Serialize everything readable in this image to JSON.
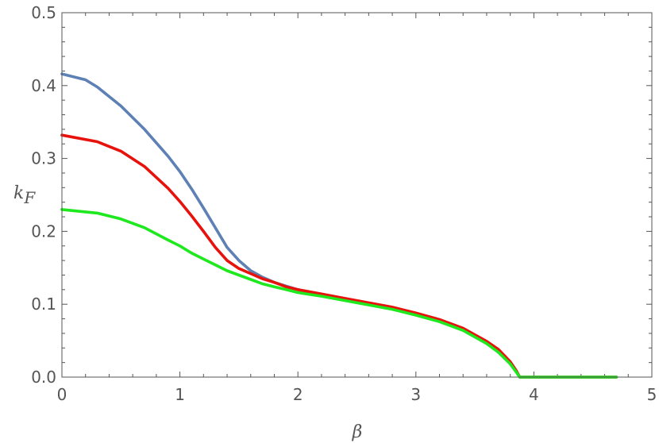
{
  "chart_data": {
    "type": "line",
    "xlabel": "β",
    "ylabel_main": "k",
    "ylabel_sub": "F",
    "xlim": [
      0,
      5
    ],
    "ylim": [
      0,
      0.5
    ],
    "grid": false,
    "xticks": [
      0,
      1,
      2,
      3,
      4,
      5
    ],
    "xtick_labels": [
      "0",
      "1",
      "2",
      "3",
      "4",
      "5"
    ],
    "yticks": [
      0,
      0.1,
      0.2,
      0.3,
      0.4,
      0.5
    ],
    "ytick_labels": [
      "0.0",
      "0.1",
      "0.2",
      "0.3",
      "0.4",
      "0.5"
    ],
    "series": [
      {
        "color": "#5e81b5",
        "points": [
          [
            0,
            0.416
          ],
          [
            0.2,
            0.408
          ],
          [
            0.3,
            0.398
          ],
          [
            0.5,
            0.372
          ],
          [
            0.7,
            0.34
          ],
          [
            0.9,
            0.303
          ],
          [
            1.0,
            0.282
          ],
          [
            1.1,
            0.258
          ],
          [
            1.2,
            0.232
          ],
          [
            1.3,
            0.205
          ],
          [
            1.4,
            0.178
          ],
          [
            1.5,
            0.16
          ],
          [
            1.6,
            0.146
          ],
          [
            1.7,
            0.137
          ],
          [
            1.8,
            0.13
          ],
          [
            1.9,
            0.125
          ],
          [
            2.0,
            0.12
          ],
          [
            2.2,
            0.113
          ],
          [
            2.4,
            0.107
          ],
          [
            2.6,
            0.101
          ],
          [
            2.8,
            0.095
          ],
          [
            3.0,
            0.087
          ],
          [
            3.2,
            0.078
          ],
          [
            3.4,
            0.066
          ],
          [
            3.6,
            0.048
          ],
          [
            3.7,
            0.037
          ],
          [
            3.8,
            0.02
          ],
          [
            3.85,
            0.008
          ],
          [
            3.88,
            0.0
          ],
          [
            4.0,
            0.0
          ],
          [
            4.7,
            0.0
          ]
        ]
      },
      {
        "color": "#e8120c",
        "points": [
          [
            0,
            0.332
          ],
          [
            0.3,
            0.323
          ],
          [
            0.5,
            0.31
          ],
          [
            0.7,
            0.289
          ],
          [
            0.9,
            0.259
          ],
          [
            1.0,
            0.241
          ],
          [
            1.1,
            0.221
          ],
          [
            1.2,
            0.2
          ],
          [
            1.3,
            0.178
          ],
          [
            1.4,
            0.16
          ],
          [
            1.5,
            0.149
          ],
          [
            1.6,
            0.142
          ],
          [
            1.7,
            0.135
          ],
          [
            1.8,
            0.13
          ],
          [
            1.9,
            0.124
          ],
          [
            2.0,
            0.12
          ],
          [
            2.2,
            0.114
          ],
          [
            2.4,
            0.108
          ],
          [
            2.6,
            0.102
          ],
          [
            2.8,
            0.096
          ],
          [
            3.0,
            0.088
          ],
          [
            3.2,
            0.079
          ],
          [
            3.4,
            0.067
          ],
          [
            3.6,
            0.049
          ],
          [
            3.7,
            0.038
          ],
          [
            3.8,
            0.021
          ],
          [
            3.85,
            0.009
          ],
          [
            3.88,
            0.0
          ],
          [
            4.0,
            0.0
          ],
          [
            4.7,
            0.0
          ]
        ]
      },
      {
        "color": "#1ee81e",
        "points": [
          [
            0,
            0.23
          ],
          [
            0.3,
            0.225
          ],
          [
            0.5,
            0.217
          ],
          [
            0.7,
            0.205
          ],
          [
            0.9,
            0.188
          ],
          [
            1.0,
            0.18
          ],
          [
            1.1,
            0.17
          ],
          [
            1.2,
            0.162
          ],
          [
            1.3,
            0.154
          ],
          [
            1.4,
            0.146
          ],
          [
            1.5,
            0.14
          ],
          [
            1.6,
            0.134
          ],
          [
            1.7,
            0.128
          ],
          [
            1.8,
            0.124
          ],
          [
            1.9,
            0.12
          ],
          [
            2.0,
            0.116
          ],
          [
            2.2,
            0.111
          ],
          [
            2.4,
            0.105
          ],
          [
            2.6,
            0.099
          ],
          [
            2.8,
            0.093
          ],
          [
            3.0,
            0.085
          ],
          [
            3.2,
            0.076
          ],
          [
            3.4,
            0.064
          ],
          [
            3.6,
            0.046
          ],
          [
            3.7,
            0.034
          ],
          [
            3.8,
            0.018
          ],
          [
            3.85,
            0.007
          ],
          [
            3.88,
            0.0
          ],
          [
            4.0,
            0.0
          ],
          [
            4.7,
            0.0
          ]
        ]
      }
    ]
  }
}
